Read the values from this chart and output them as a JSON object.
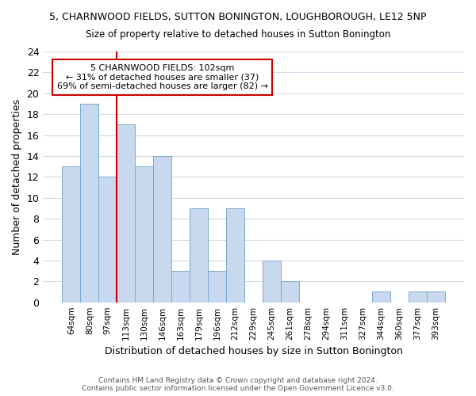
{
  "title_line1": "5, CHARNWOOD FIELDS, SUTTON BONINGTON, LOUGHBOROUGH, LE12 5NP",
  "title_line2": "Size of property relative to detached houses in Sutton Bonington",
  "xlabel": "Distribution of detached houses by size in Sutton Bonington",
  "ylabel": "Number of detached properties",
  "categories": [
    "64sqm",
    "80sqm",
    "97sqm",
    "113sqm",
    "130sqm",
    "146sqm",
    "163sqm",
    "179sqm",
    "196sqm",
    "212sqm",
    "229sqm",
    "245sqm",
    "261sqm",
    "278sqm",
    "294sqm",
    "311sqm",
    "327sqm",
    "344sqm",
    "360sqm",
    "377sqm",
    "393sqm"
  ],
  "values": [
    13,
    19,
    12,
    17,
    13,
    14,
    3,
    9,
    3,
    9,
    0,
    4,
    2,
    0,
    0,
    0,
    0,
    1,
    0,
    1,
    1
  ],
  "bar_color": "#c8d8ee",
  "bar_edge_color": "#7aaad0",
  "red_line_x": 2.5,
  "annotation_text1": "5 CHARNWOOD FIELDS: 102sqm",
  "annotation_text2": "← 31% of detached houses are smaller (37)",
  "annotation_text3": "69% of semi-detached houses are larger (82) →",
  "ylim": [
    0,
    24
  ],
  "yticks": [
    0,
    2,
    4,
    6,
    8,
    10,
    12,
    14,
    16,
    18,
    20,
    22,
    24
  ],
  "footer1": "Contains HM Land Registry data © Crown copyright and database right 2024.",
  "footer2": "Contains public sector information licensed under the Open Government Licence v3.0.",
  "background_color": "#ffffff",
  "grid_color": "#d0dce8",
  "annotation_box_color": "#ffffff",
  "annotation_box_edge": "#cc0000",
  "red_line_color": "#cc0000"
}
